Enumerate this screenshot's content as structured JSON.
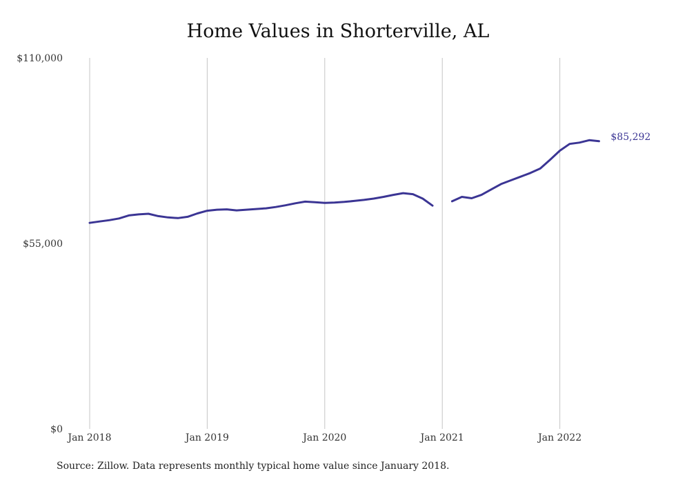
{
  "chart_data": {
    "type": "line",
    "title": "Home Values in Shorterville, AL",
    "xlabel": "",
    "ylabel": "",
    "x_ticks": [
      "Jan 2018",
      "Jan 2019",
      "Jan 2020",
      "Jan 2021",
      "Jan 2022"
    ],
    "y_ticks": [
      "$110,000",
      "$55,000",
      "$0"
    ],
    "ylim": [
      0,
      110000
    ],
    "grid": "vertical",
    "line_color": "#3b3594",
    "end_label": "$85,292",
    "series": [
      {
        "segments": [
          {
            "x": [
              "2018-01",
              "2018-02",
              "2018-03",
              "2018-04",
              "2018-05",
              "2018-06",
              "2018-07",
              "2018-08",
              "2018-09",
              "2018-10",
              "2018-11",
              "2018-12",
              "2019-01",
              "2019-02",
              "2019-03",
              "2019-04",
              "2019-05",
              "2019-06",
              "2019-07",
              "2019-08",
              "2019-09",
              "2019-10",
              "2019-11",
              "2019-12",
              "2020-01",
              "2020-02",
              "2020-03",
              "2020-04",
              "2020-05",
              "2020-06",
              "2020-07",
              "2020-08",
              "2020-09",
              "2020-10",
              "2020-11",
              "2020-12"
            ],
            "y": [
              61100,
              61500,
              61900,
              62400,
              63300,
              63600,
              63800,
              63100,
              62700,
              62500,
              62900,
              63900,
              64700,
              65000,
              65100,
              64800,
              65000,
              65200,
              65400,
              65800,
              66300,
              66900,
              67400,
              67200,
              67000,
              67100,
              67300,
              67600,
              67900,
              68300,
              68800,
              69400,
              69900,
              69600,
              68300,
              66200
            ]
          },
          {
            "x": [
              "2021-02",
              "2021-03",
              "2021-04",
              "2021-05",
              "2021-06",
              "2021-07",
              "2021-08",
              "2021-09",
              "2021-10",
              "2021-11",
              "2021-12",
              "2022-01",
              "2022-02",
              "2022-03",
              "2022-04",
              "2022-05"
            ],
            "y": [
              67500,
              68800,
              68400,
              69400,
              71000,
              72600,
              73700,
              74800,
              75900,
              77200,
              79800,
              82500,
              84500,
              84900,
              85600,
              85292
            ]
          }
        ]
      }
    ]
  },
  "source_text": "Source: Zillow. Data represents monthly typical home value since January 2018."
}
